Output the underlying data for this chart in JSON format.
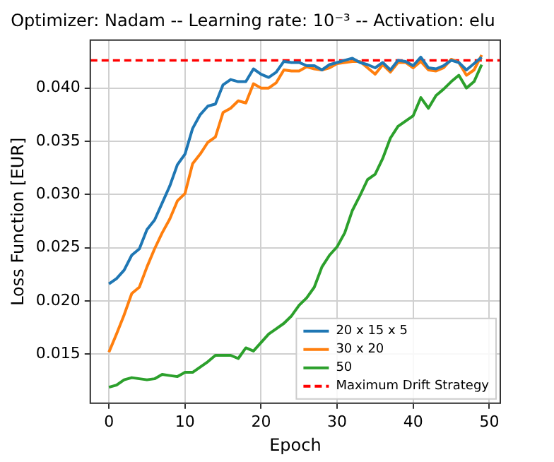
{
  "chart_data": {
    "type": "line",
    "title": "Optimizer: Nadam -- Learning rate: 10⁻³ -- Activation: elu",
    "xlabel": "Epoch",
    "ylabel": "Loss Function [EUR]",
    "x": [
      0,
      1,
      2,
      3,
      4,
      5,
      6,
      7,
      8,
      9,
      10,
      11,
      12,
      13,
      14,
      15,
      16,
      17,
      18,
      19,
      20,
      21,
      22,
      23,
      24,
      25,
      26,
      27,
      28,
      29,
      30,
      31,
      32,
      33,
      34,
      35,
      36,
      37,
      38,
      39,
      40,
      41,
      42,
      43,
      44,
      45,
      46,
      47,
      48,
      49
    ],
    "series": [
      {
        "name": "20 x 15 x 5",
        "color": "#1f77b4",
        "values": [
          0.0216,
          0.0221,
          0.0229,
          0.0243,
          0.0249,
          0.0267,
          0.0276,
          0.0292,
          0.0308,
          0.0328,
          0.0338,
          0.0362,
          0.0375,
          0.0383,
          0.0385,
          0.0403,
          0.0408,
          0.0406,
          0.0406,
          0.0418,
          0.0413,
          0.041,
          0.0415,
          0.0425,
          0.0424,
          0.0424,
          0.0421,
          0.0421,
          0.0417,
          0.0422,
          0.0424,
          0.0426,
          0.0428,
          0.0424,
          0.0422,
          0.0419,
          0.0424,
          0.0417,
          0.0426,
          0.0425,
          0.0421,
          0.0429,
          0.0419,
          0.0418,
          0.0421,
          0.0426,
          0.0424,
          0.0417,
          0.0423,
          0.0429
        ]
      },
      {
        "name": "30 x 20",
        "color": "#ff7f0e",
        "values": [
          0.0152,
          0.0169,
          0.0187,
          0.0207,
          0.0213,
          0.0232,
          0.0249,
          0.0264,
          0.0277,
          0.0294,
          0.0301,
          0.0329,
          0.0338,
          0.0349,
          0.0354,
          0.0377,
          0.0381,
          0.0388,
          0.0386,
          0.0404,
          0.04,
          0.04,
          0.0405,
          0.0417,
          0.0416,
          0.0416,
          0.042,
          0.0418,
          0.0417,
          0.0419,
          0.0423,
          0.0424,
          0.0425,
          0.0425,
          0.0419,
          0.0413,
          0.0422,
          0.0415,
          0.0424,
          0.0424,
          0.0419,
          0.0425,
          0.0417,
          0.0416,
          0.0419,
          0.0427,
          0.0424,
          0.0412,
          0.0417,
          0.0431
        ]
      },
      {
        "name": "50",
        "color": "#2ca02c",
        "values": [
          0.0119,
          0.0121,
          0.0126,
          0.0128,
          0.0127,
          0.0126,
          0.0127,
          0.0131,
          0.013,
          0.0129,
          0.0133,
          0.0133,
          0.0138,
          0.0143,
          0.0149,
          0.0149,
          0.0149,
          0.0146,
          0.0156,
          0.0153,
          0.0161,
          0.0169,
          0.0174,
          0.0179,
          0.0186,
          0.0196,
          0.0203,
          0.0213,
          0.0232,
          0.0243,
          0.0251,
          0.0264,
          0.0285,
          0.0299,
          0.0314,
          0.0319,
          0.0334,
          0.0353,
          0.0364,
          0.0369,
          0.0374,
          0.0391,
          0.0381,
          0.0393,
          0.0399,
          0.0406,
          0.0412,
          0.04,
          0.0406,
          0.0422
        ]
      }
    ],
    "ref_lines": [
      {
        "axis": "y",
        "value": 0.0426,
        "label": "Maximum Drift Strategy",
        "color": "#ff0000",
        "line_style": "dashed"
      }
    ],
    "xlim": [
      -2.45,
      51.45
    ],
    "ylim": [
      0.0104,
      0.0445
    ],
    "xticks": [
      0,
      10,
      20,
      30,
      40,
      50
    ],
    "yticks": [
      {
        "value": 0.015,
        "label": "0.015"
      },
      {
        "value": 0.02,
        "label": "0.020"
      },
      {
        "value": 0.025,
        "label": "0.025"
      },
      {
        "value": 0.03,
        "label": "0.030"
      },
      {
        "value": 0.035,
        "label": "0.035"
      },
      {
        "value": 0.04,
        "label": "0.040"
      }
    ],
    "grid": true,
    "legend": "bottom right",
    "marker": "none",
    "line_style": "solid"
  }
}
